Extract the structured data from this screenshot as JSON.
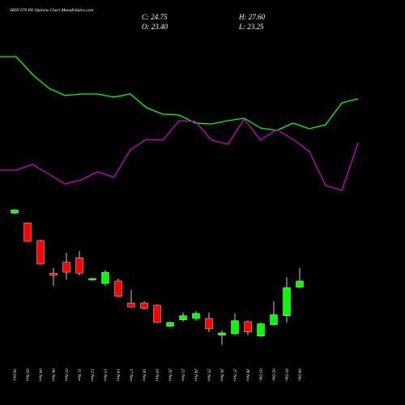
{
  "chart_data": {
    "type": "candlestick",
    "title": "SBIN 970 PE Options Chart MunafaSutra.com",
    "header": [
      "C: 24.75",
      "H: 27.60",
      "O: 23.40",
      "L: 23.25"
    ],
    "categories": [
      "30 Oct",
      "03 Nov",
      "04 Nov",
      "06 Nov",
      "07 Nov",
      "11 Nov",
      "12 Nov",
      "13 Nov",
      "14 Nov",
      "17 Nov",
      "18 Nov",
      "19 Nov",
      "20 Nov",
      "21 Nov",
      "24 Nov",
      "25 Nov",
      "26 Nov",
      "27 Nov",
      "28 Nov",
      "01 Dec",
      "02 Dec",
      "03 Dec",
      "04 Dec"
    ],
    "open": [
      39.75,
      37.6,
      33.7,
      26.5,
      28.9,
      29.9,
      25.0,
      24.2,
      24.75,
      19.9,
      19.9,
      19.4,
      14.75,
      16.2,
      16.5,
      16.5,
      12.8,
      13.1,
      15.8,
      12.6,
      15.1,
      17.1,
      23.4
    ],
    "high": [
      40.6,
      37.7,
      33.9,
      27.6,
      31.0,
      31.4,
      25.5,
      27.2,
      25.3,
      22.8,
      20.3,
      19.6,
      15.8,
      17.8,
      18.1,
      17.8,
      13.9,
      17.6,
      16.0,
      15.6,
      20.3,
      25.6,
      27.6
    ],
    "low": [
      39.6,
      33.4,
      28.4,
      23.7,
      25.1,
      26.0,
      24.8,
      23.7,
      21.2,
      18.9,
      18.5,
      15.5,
      14.6,
      15.8,
      16.0,
      13.5,
      10.7,
      12.9,
      12.8,
      12.4,
      14.9,
      15.6,
      23.25
    ],
    "close": [
      40.46,
      33.5,
      28.5,
      26.0,
      26.7,
      26.5,
      25.3,
      26.7,
      21.4,
      19.0,
      18.7,
      15.6,
      15.6,
      17.1,
      17.6,
      14.2,
      13.3,
      16.0,
      13.5,
      15.3,
      17.3,
      23.3,
      24.75
    ],
    "up_color": "#00ff00",
    "down_color": "#ff0000",
    "ylim": [
      8.1,
      42.1
    ],
    "series": [
      {
        "color": "#00ff00",
        "values": [
          180,
          180,
          158,
          141,
          132,
          134,
          134,
          130,
          134,
          117,
          109,
          108,
          98,
          97,
          101,
          104,
          92,
          89,
          98,
          91,
          96,
          123,
          128
        ]
      },
      {
        "color": "#cc00cc",
        "values": [
          40,
          40,
          47,
          35,
          23,
          28,
          38,
          31,
          65,
          78,
          77,
          101,
          100,
          77,
          72,
          103,
          77,
          90,
          78,
          63,
          21,
          15,
          74
        ]
      }
    ],
    "y2lim": [
      0,
      250
    ]
  }
}
